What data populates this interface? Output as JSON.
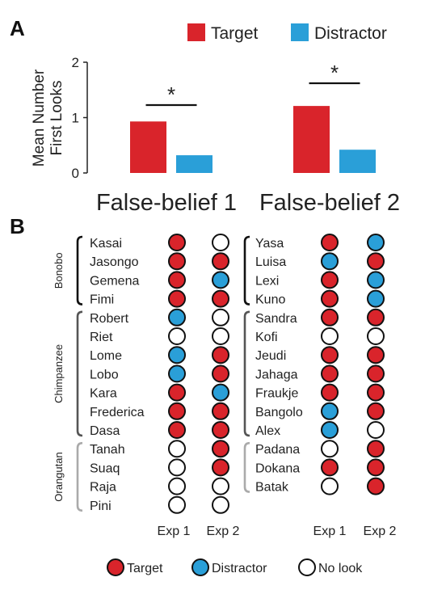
{
  "panel_a_label": "A",
  "panel_b_label": "B",
  "colors": {
    "target": "#d9242b",
    "distractor": "#2a9fd8",
    "nolook": "#ffffff",
    "bracket": "#555555",
    "orangutan_bracket": "#aaaaaa"
  },
  "chart_data": [
    {
      "type": "bar",
      "categories": [
        "False-belief 1",
        "False-belief 2"
      ],
      "series": [
        {
          "name": "Target",
          "values": [
            0.93,
            1.21
          ]
        },
        {
          "name": "Distractor",
          "values": [
            0.32,
            0.42
          ]
        }
      ],
      "ylabel": "Mean Number First Looks",
      "ylabel_lines": [
        "Mean Number",
        "First Looks"
      ],
      "ylim": [
        0,
        2
      ],
      "yticks": [
        "0",
        "1",
        "2"
      ],
      "annotations": [
        "*",
        "*"
      ],
      "legend_placement": "top-right",
      "grid": false
    },
    {
      "type": "table",
      "columns": [
        "Exp 1",
        "Exp 2"
      ],
      "legend": [
        {
          "key": "target",
          "label": "Target"
        },
        {
          "key": "distractor",
          "label": "Distractor"
        },
        {
          "key": "nolook",
          "label": "No look"
        }
      ],
      "left_groups": [
        {
          "species": "Bonobo",
          "individuals": [
            {
              "name": "Kasai",
              "exp1": "target",
              "exp2": "nolook"
            },
            {
              "name": "Jasongo",
              "exp1": "target",
              "exp2": "target"
            },
            {
              "name": "Gemena",
              "exp1": "target",
              "exp2": "distractor"
            },
            {
              "name": "Fimi",
              "exp1": "target",
              "exp2": "target"
            }
          ]
        },
        {
          "species": "Chimpanzee",
          "individuals": [
            {
              "name": "Robert",
              "exp1": "distractor",
              "exp2": "nolook"
            },
            {
              "name": "Riet",
              "exp1": "nolook",
              "exp2": "nolook"
            },
            {
              "name": "Lome",
              "exp1": "distractor",
              "exp2": "target"
            },
            {
              "name": "Lobo",
              "exp1": "distractor",
              "exp2": "target"
            },
            {
              "name": "Kara",
              "exp1": "target",
              "exp2": "distractor"
            },
            {
              "name": "Frederica",
              "exp1": "target",
              "exp2": "target"
            },
            {
              "name": "Dasa",
              "exp1": "target",
              "exp2": "target"
            }
          ]
        },
        {
          "species": "Orangutan",
          "individuals": [
            {
              "name": "Tanah",
              "exp1": "nolook",
              "exp2": "target"
            },
            {
              "name": "Suaq",
              "exp1": "nolook",
              "exp2": "target"
            },
            {
              "name": "Raja",
              "exp1": "nolook",
              "exp2": "nolook"
            },
            {
              "name": "Pini",
              "exp1": "nolook",
              "exp2": "nolook"
            }
          ]
        }
      ],
      "right_groups": [
        {
          "species": "Bonobo",
          "individuals": [
            {
              "name": "Yasa",
              "exp1": "target",
              "exp2": "distractor"
            },
            {
              "name": "Luisa",
              "exp1": "distractor",
              "exp2": "target"
            },
            {
              "name": "Lexi",
              "exp1": "target",
              "exp2": "distractor"
            },
            {
              "name": "Kuno",
              "exp1": "target",
              "exp2": "distractor"
            }
          ]
        },
        {
          "species": "Chimpanzee",
          "individuals": [
            {
              "name": "Sandra",
              "exp1": "target",
              "exp2": "target"
            },
            {
              "name": "Kofi",
              "exp1": "nolook",
              "exp2": "nolook"
            },
            {
              "name": "Jeudi",
              "exp1": "target",
              "exp2": "target"
            },
            {
              "name": "Jahaga",
              "exp1": "target",
              "exp2": "target"
            },
            {
              "name": "Fraukje",
              "exp1": "target",
              "exp2": "target"
            },
            {
              "name": "Bangolo",
              "exp1": "distractor",
              "exp2": "target"
            },
            {
              "name": "Alex",
              "exp1": "distractor",
              "exp2": "nolook"
            }
          ]
        },
        {
          "species": "Orangutan",
          "individuals": [
            {
              "name": "Padana",
              "exp1": "nolook",
              "exp2": "target"
            },
            {
              "name": "Dokana",
              "exp1": "target",
              "exp2": "target"
            },
            {
              "name": "Batak",
              "exp1": "nolook",
              "exp2": "target"
            }
          ]
        }
      ]
    }
  ]
}
